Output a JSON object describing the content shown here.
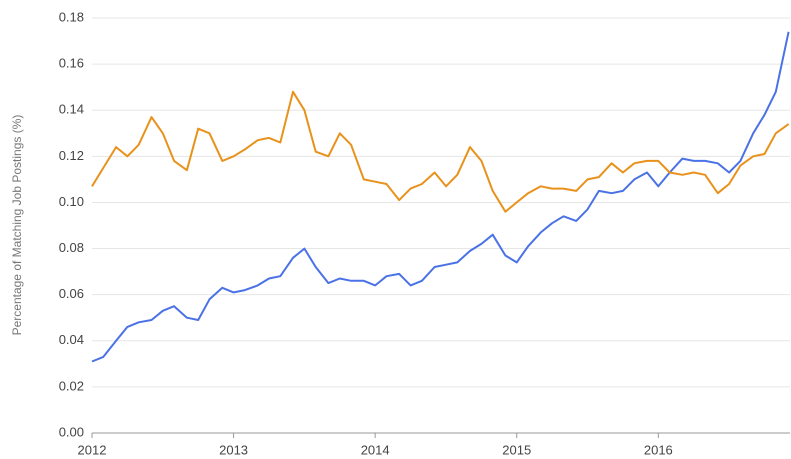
{
  "chart_data": {
    "type": "line",
    "y_label": "Percentage of Matching Job Postings (%)",
    "x": [
      2012.0,
      2012.08,
      2012.17,
      2012.25,
      2012.33,
      2012.42,
      2012.5,
      2012.58,
      2012.67,
      2012.75,
      2012.83,
      2012.92,
      2013.0,
      2013.08,
      2013.17,
      2013.25,
      2013.33,
      2013.42,
      2013.5,
      2013.58,
      2013.67,
      2013.75,
      2013.83,
      2013.92,
      2014.0,
      2014.08,
      2014.17,
      2014.25,
      2014.33,
      2014.42,
      2014.5,
      2014.58,
      2014.67,
      2014.75,
      2014.83,
      2014.92,
      2015.0,
      2015.08,
      2015.17,
      2015.25,
      2015.33,
      2015.42,
      2015.5,
      2015.58,
      2015.67,
      2015.75,
      2015.83,
      2015.92,
      2016.0,
      2016.08,
      2016.17,
      2016.25,
      2016.33,
      2016.42,
      2016.5,
      2016.58,
      2016.67,
      2016.75,
      2016.83,
      2016.92
    ],
    "series": [
      {
        "color": "#4a72e6",
        "values": [
          0.031,
          0.033,
          0.04,
          0.046,
          0.048,
          0.049,
          0.053,
          0.055,
          0.05,
          0.049,
          0.058,
          0.063,
          0.061,
          0.062,
          0.064,
          0.067,
          0.068,
          0.076,
          0.08,
          0.072,
          0.065,
          0.067,
          0.066,
          0.066,
          0.064,
          0.068,
          0.069,
          0.064,
          0.066,
          0.072,
          0.073,
          0.074,
          0.079,
          0.082,
          0.086,
          0.077,
          0.074,
          0.081,
          0.087,
          0.091,
          0.094,
          0.092,
          0.097,
          0.105,
          0.104,
          0.105,
          0.11,
          0.113,
          0.107,
          0.113,
          0.119,
          0.118,
          0.118,
          0.117,
          0.113,
          0.118,
          0.13,
          0.138,
          0.148,
          0.174
        ]
      },
      {
        "color": "#e8921c",
        "values": [
          0.107,
          0.115,
          0.124,
          0.12,
          0.125,
          0.137,
          0.13,
          0.118,
          0.114,
          0.132,
          0.13,
          0.118,
          0.12,
          0.123,
          0.127,
          0.128,
          0.126,
          0.148,
          0.14,
          0.122,
          0.12,
          0.13,
          0.125,
          0.11,
          0.109,
          0.108,
          0.101,
          0.106,
          0.108,
          0.113,
          0.107,
          0.112,
          0.124,
          0.118,
          0.105,
          0.096,
          0.1,
          0.104,
          0.107,
          0.106,
          0.106,
          0.105,
          0.11,
          0.111,
          0.117,
          0.113,
          0.117,
          0.118,
          0.118,
          0.113,
          0.112,
          0.113,
          0.112,
          0.104,
          0.108,
          0.116,
          0.12,
          0.121,
          0.13,
          0.134
        ]
      }
    ],
    "xlim": [
      2012,
      2016.93
    ],
    "xticks": [
      2012,
      2013,
      2014,
      2015,
      2016
    ],
    "ylim": [
      0,
      0.18
    ],
    "yticks": [
      {
        "value": 0,
        "label": "0.00"
      },
      0.02,
      0.04,
      0.06,
      0.08,
      {
        "value": 0.1,
        "label": "0.10"
      },
      0.12,
      0.14,
      0.16,
      0.18
    ],
    "grid": true
  }
}
